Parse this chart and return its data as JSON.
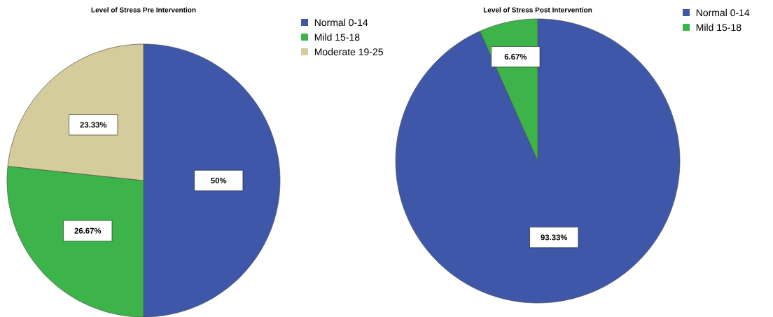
{
  "chart_data": [
    {
      "type": "pie",
      "title": "Level of Stress Pre Intervention",
      "categories": [
        "Normal 0-14",
        "Mild 15-18",
        "Moderate 19-25"
      ],
      "values": [
        50,
        26.67,
        23.33
      ],
      "value_labels": [
        "50%",
        "26.67%",
        "23.33%"
      ],
      "colors": [
        "#3f57a8",
        "#3cb44a",
        "#d4cc9a"
      ],
      "legend": "right"
    },
    {
      "type": "pie",
      "title": "Level of Stress Post Intervention",
      "categories": [
        "Normal 0-14",
        "Mild 15-18"
      ],
      "values": [
        93.33,
        6.67
      ],
      "value_labels": [
        "93.33%",
        "6.67%"
      ],
      "colors": [
        "#3f57a8",
        "#3cb44a"
      ],
      "legend": "right"
    }
  ]
}
